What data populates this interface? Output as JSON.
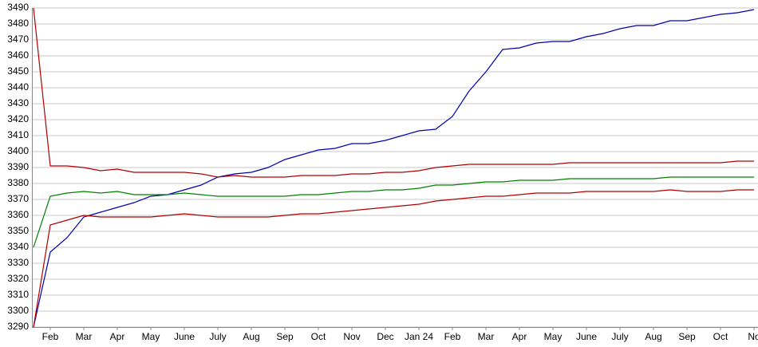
{
  "chart_data": {
    "type": "line",
    "categories": [
      null,
      "Feb",
      null,
      "Mar",
      null,
      "Apr",
      null,
      "May",
      null,
      "June",
      null,
      "July",
      null,
      "Aug",
      null,
      "Sep",
      null,
      "Oct",
      null,
      "Nov",
      null,
      "Dec",
      null,
      "Jan 24",
      null,
      "Feb",
      null,
      "Mar",
      null,
      "Apr",
      null,
      "May",
      null,
      "June",
      null,
      "July",
      null,
      "Aug",
      null,
      "Sep",
      null,
      "Oct",
      null,
      "No"
    ],
    "series": [
      {
        "color": "#0000b0",
        "values": [
          3290,
          3337,
          3346,
          3359,
          3362,
          3365,
          3368,
          3372,
          3373,
          3376,
          3379,
          3384,
          3386,
          3387,
          3390,
          3395,
          3398,
          3401,
          3402,
          3405,
          3405,
          3407,
          3410,
          3413,
          3414,
          3422,
          3438,
          3450,
          3464,
          3465,
          3468,
          3469,
          3469,
          3472,
          3474,
          3477,
          3479,
          3479,
          3482,
          3482,
          3484,
          3486,
          3487,
          3489
        ]
      },
      {
        "color": "#b00000",
        "values": [
          3490,
          3391,
          3391,
          3390,
          3388,
          3389,
          3387,
          3387,
          3387,
          3387,
          3386,
          3384,
          3385,
          3384,
          3384,
          3384,
          3385,
          3385,
          3385,
          3386,
          3386,
          3387,
          3387,
          3388,
          3390,
          3391,
          3392,
          3392,
          3392,
          3392,
          3392,
          3392,
          3393,
          3393,
          3393,
          3393,
          3393,
          3393,
          3393,
          3393,
          3393,
          3393,
          3394,
          3394
        ]
      },
      {
        "color": "#008000",
        "values": [
          3340,
          3372,
          3374,
          3375,
          3374,
          3375,
          3373,
          3373,
          3373,
          3374,
          3373,
          3372,
          3372,
          3372,
          3372,
          3372,
          3373,
          3373,
          3374,
          3375,
          3375,
          3376,
          3376,
          3377,
          3379,
          3379,
          3380,
          3381,
          3381,
          3382,
          3382,
          3382,
          3383,
          3383,
          3383,
          3383,
          3383,
          3383,
          3384,
          3384,
          3384,
          3384,
          3384,
          3384
        ]
      },
      {
        "color": "#b00000",
        "values": [
          3290,
          3354,
          3357,
          3360,
          3359,
          3359,
          3359,
          3359,
          3360,
          3361,
          3360,
          3359,
          3359,
          3359,
          3359,
          3360,
          3361,
          3361,
          3362,
          3363,
          3364,
          3365,
          3366,
          3367,
          3369,
          3370,
          3371,
          3372,
          3372,
          3373,
          3374,
          3374,
          3374,
          3375,
          3375,
          3375,
          3375,
          3375,
          3376,
          3375,
          3375,
          3375,
          3376,
          3376
        ]
      }
    ],
    "ylim": [
      3290,
      3490
    ],
    "yticks": [
      3290,
      3300,
      3310,
      3320,
      3330,
      3340,
      3350,
      3360,
      3370,
      3380,
      3390,
      3400,
      3410,
      3420,
      3430,
      3440,
      3450,
      3460,
      3470,
      3480,
      3490
    ],
    "grid": true
  }
}
